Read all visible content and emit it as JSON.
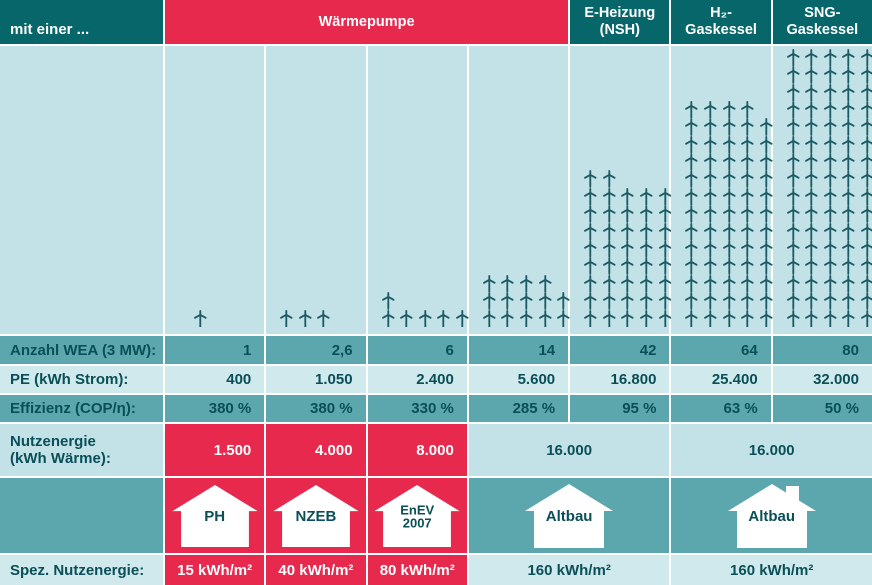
{
  "header": {
    "intro": "mit einer ...",
    "groups": [
      {
        "label": "Wärmepumpe"
      },
      {
        "label": "E-Heizung\n(NSH)"
      },
      {
        "label": "H₂-\nGaskessel"
      },
      {
        "label": "SNG-\nGaskessel"
      }
    ]
  },
  "wind": {
    "icon": "wind-turbine-icon",
    "icon_color": "#1c5b63",
    "icon_counts": [
      1,
      3,
      6,
      14,
      42,
      64,
      80
    ]
  },
  "table": {
    "rows": [
      {
        "label": "Anzahl WEA (3 MW):",
        "values": [
          "1",
          "2,6",
          "6",
          "14",
          "42",
          "64",
          "80"
        ]
      },
      {
        "label": "PE (kWh Strom):",
        "values": [
          "400",
          "1.050",
          "2.400",
          "5.600",
          "16.800",
          "25.400",
          "32.000"
        ]
      },
      {
        "label": "Effizienz (COP/η):",
        "values": [
          "380 %",
          "380 %",
          "330 %",
          "285 %",
          "95 %",
          "63 %",
          "50 %"
        ]
      }
    ],
    "nutzenergie": {
      "label": "Nutzenergie\n(kWh Wärme):",
      "red_values": [
        "1.500",
        "4.000",
        "8.000"
      ],
      "merged_values": [
        "16.000",
        "16.000"
      ]
    },
    "houses": {
      "red": [
        "PH",
        "NZEB",
        "EnEV\n2007"
      ],
      "teal": [
        "Altbau",
        "Altbau"
      ]
    },
    "spez": {
      "label": "Spez. Nutzenergie:",
      "red_values": [
        "15 kWh/m²",
        "40 kWh/m²",
        "80 kWh/m²"
      ],
      "merged_values": [
        "160 kWh/m²",
        "160 kWh/m²"
      ]
    }
  },
  "colors": {
    "red": "#e8294e",
    "teal_dark": "#07666a",
    "teal_mid": "#5ca7ae",
    "sky_blue": "#c3e2e8",
    "light_blue": "#cfe9ed",
    "text_teal": "#0a4f57",
    "turbine": "#1c5b63"
  },
  "chart_data": {
    "type": "table",
    "title": "mit einer ...",
    "categories": [
      "Wärmepumpe (PH)",
      "Wärmepumpe (NZEB)",
      "Wärmepumpe (EnEV 2007)",
      "Wärmepumpe (Altbau)",
      "E-Heizung NSH (Altbau)",
      "H₂-Gaskessel (Altbau)",
      "SNG-Gaskessel (Altbau)"
    ],
    "building_standards": [
      "PH",
      "NZEB",
      "EnEV 2007",
      "Altbau",
      "Altbau",
      "Altbau",
      "Altbau"
    ],
    "pictogram_icon_counts": [
      1,
      3,
      6,
      14,
      42,
      64,
      80
    ],
    "series": [
      {
        "name": "Anzahl WEA (3 MW)",
        "values": [
          1,
          2.6,
          6,
          14,
          42,
          64,
          80
        ]
      },
      {
        "name": "PE (kWh Strom)",
        "values": [
          400,
          1050,
          2400,
          5600,
          16800,
          25400,
          32000
        ]
      },
      {
        "name": "Effizienz (COP/η) in %",
        "values": [
          380,
          380,
          330,
          285,
          95,
          63,
          50
        ]
      },
      {
        "name": "Nutzenergie (kWh Wärme)",
        "values": [
          1500,
          4000,
          8000,
          16000,
          16000,
          16000,
          16000
        ]
      },
      {
        "name": "Spez. Nutzenergie (kWh/m²)",
        "values": [
          15,
          40,
          80,
          160,
          160,
          160,
          160
        ]
      }
    ],
    "legend_position": "none",
    "grid": false
  }
}
